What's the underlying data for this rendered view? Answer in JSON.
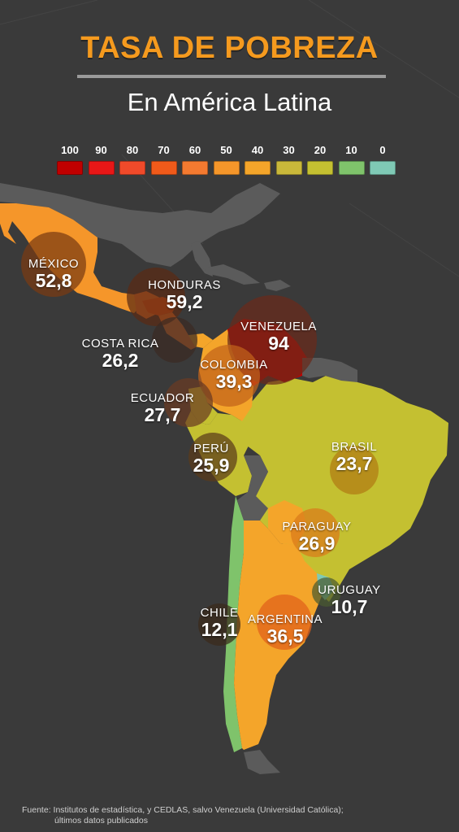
{
  "title": "TASA DE POBREZA",
  "subtitle": "En América Latina",
  "legend": [
    {
      "label": "100",
      "color": "#c00000"
    },
    {
      "label": "90",
      "color": "#e81717"
    },
    {
      "label": "80",
      "color": "#f04a2a"
    },
    {
      "label": "70",
      "color": "#f05a1a"
    },
    {
      "label": "60",
      "color": "#f47a30"
    },
    {
      "label": "50",
      "color": "#f5962a"
    },
    {
      "label": "40",
      "color": "#f4a52a"
    },
    {
      "label": "30",
      "color": "#c9b83a"
    },
    {
      "label": "20",
      "color": "#c4c031"
    },
    {
      "label": "10",
      "color": "#7fc36b"
    },
    {
      "label": "0",
      "color": "#7fc9b5"
    }
  ],
  "countries": [
    {
      "name": "MÉXICO",
      "value": "52,8"
    },
    {
      "name": "HONDURAS",
      "value": "59,2"
    },
    {
      "name": "COSTA RICA",
      "value": "26,2"
    },
    {
      "name": "VENEZUELA",
      "value": "94"
    },
    {
      "name": "COLOMBIA",
      "value": "39,3"
    },
    {
      "name": "ECUADOR",
      "value": "27,7"
    },
    {
      "name": "PERÚ",
      "value": "25,9"
    },
    {
      "name": "BRASIL",
      "value": "23,7"
    },
    {
      "name": "PARAGUAY",
      "value": "26,9"
    },
    {
      "name": "URUGUAY",
      "value": "10,7"
    },
    {
      "name": "CHILE",
      "value": "12,1"
    },
    {
      "name": "ARGENTINA",
      "value": "36,5"
    }
  ],
  "source": {
    "line1": "Fuente: Institutos de estadística, y CEDLAS, salvo Venezuela (Universidad Católica);",
    "line2": "últimos datos publicados"
  },
  "colors": {
    "background": "#3a3a3a",
    "land_other": "#5a5a5a",
    "title": "#f59a1e"
  }
}
